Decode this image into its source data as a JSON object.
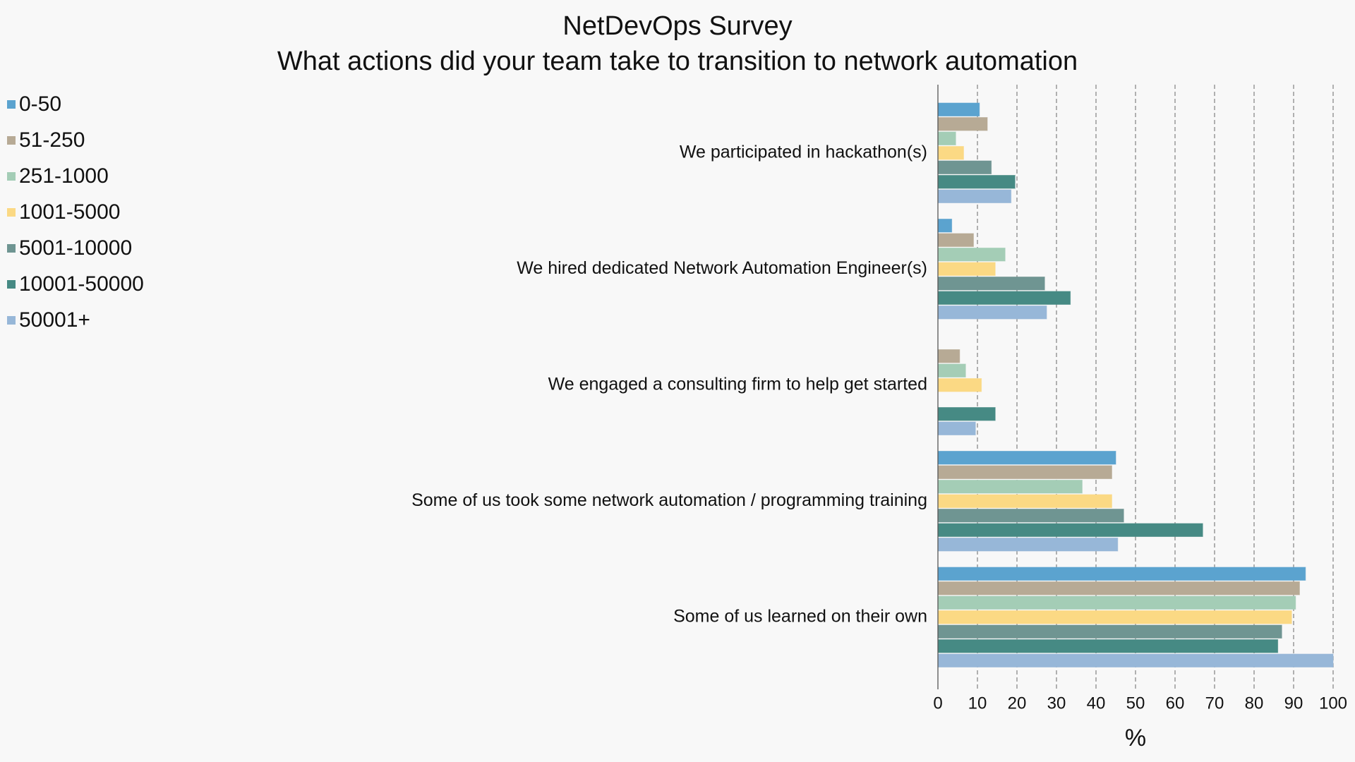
{
  "title": "NetDevOps Survey",
  "subtitle": "What actions did your team take to transition to network automation",
  "chart_data": {
    "type": "bar",
    "orientation": "horizontal",
    "title": "NetDevOps Survey",
    "subtitle": "What actions did your team take to transition to network automation",
    "xlabel": "%",
    "ylabel": "",
    "xlim": [
      0,
      100
    ],
    "xticks": [
      "0",
      "10",
      "20",
      "30",
      "40",
      "50",
      "60",
      "70",
      "80",
      "90",
      "100"
    ],
    "grid": "vertical dashed",
    "legend_position": "top-left",
    "categories": [
      "We participated in hackathon(s)",
      "We hired dedicated Network Automation Engineer(s)",
      "We engaged a consulting firm to help get started",
      "Some of us took some network automation / programming training",
      "Some of us learned on their own"
    ],
    "series": [
      {
        "name": "0-50",
        "color": "#5ba3cf",
        "values": [
          10.5,
          3.5,
          0,
          45,
          93
        ]
      },
      {
        "name": "51-250",
        "color": "#b7aa95",
        "values": [
          12.5,
          9,
          5.5,
          44,
          91.5
        ]
      },
      {
        "name": "251-1000",
        "color": "#a4cdb6",
        "values": [
          4.5,
          17,
          7,
          36.5,
          90.5
        ]
      },
      {
        "name": "1001-5000",
        "color": "#fbd984",
        "values": [
          6.5,
          14.5,
          11,
          44,
          89.5
        ]
      },
      {
        "name": "5001-10000",
        "color": "#6f9592",
        "values": [
          13.5,
          27,
          0,
          47,
          87
        ]
      },
      {
        "name": "10001-50000",
        "color": "#468a84",
        "values": [
          19.5,
          33.5,
          14.5,
          67,
          86
        ]
      },
      {
        "name": "50001+",
        "color": "#97b7d8",
        "values": [
          18.5,
          27.5,
          9.5,
          45.5,
          100
        ]
      }
    ]
  }
}
